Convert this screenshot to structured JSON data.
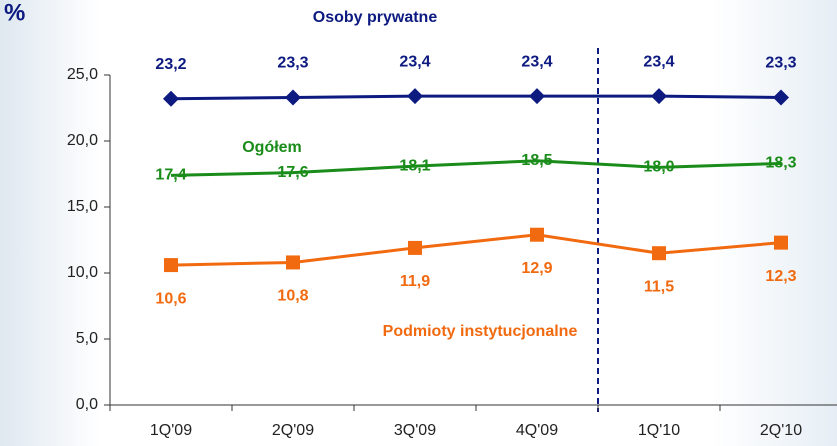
{
  "chart_data": {
    "type": "line",
    "y_unit": "%",
    "categories": [
      "1Q'09",
      "2Q'09",
      "3Q'09",
      "4Q'09",
      "1Q'10",
      "2Q'10"
    ],
    "ylim": [
      0,
      25
    ],
    "yticks": [
      {
        "value": 0,
        "label": "0,0"
      },
      {
        "value": 5,
        "label": "5,0"
      },
      {
        "value": 10,
        "label": "10,0"
      },
      {
        "value": 15,
        "label": "15,0"
      },
      {
        "value": 20,
        "label": "20,0"
      },
      {
        "value": 25,
        "label": "25,0"
      }
    ],
    "series": [
      {
        "name": "Osoby prywatne",
        "color": "#0d1a80",
        "values": [
          23.2,
          23.3,
          23.4,
          23.4,
          23.4,
          23.3
        ],
        "value_labels": [
          "23,2",
          "23,3",
          "23,4",
          "23,4",
          "23,4",
          "23,3"
        ]
      },
      {
        "name": "Ogółem",
        "color": "#1a8c1a",
        "values": [
          17.4,
          17.6,
          18.1,
          18.5,
          18.0,
          18.3
        ],
        "value_labels": [
          "17,4",
          "17,6",
          "18,1",
          "18,5",
          "18,0",
          "18,3"
        ]
      },
      {
        "name": "Podmioty instytucjonalne",
        "color": "#f26a10",
        "values": [
          10.6,
          10.8,
          11.9,
          12.9,
          11.5,
          12.3
        ],
        "value_labels": [
          "10,6",
          "10,8",
          "11,9",
          "12,9",
          "11,5",
          "12,3"
        ]
      }
    ]
  }
}
